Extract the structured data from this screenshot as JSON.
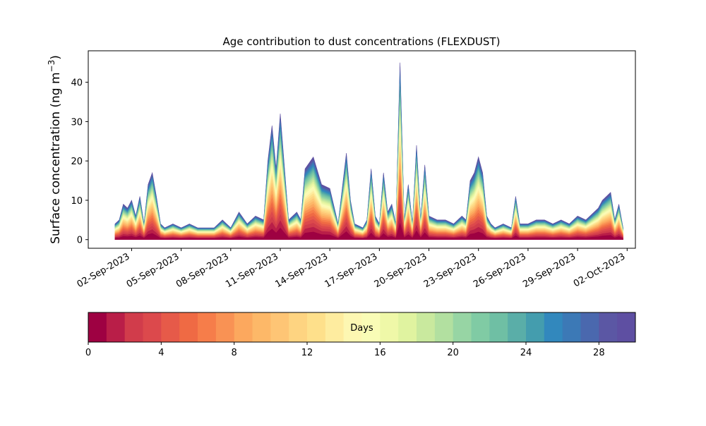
{
  "chart_data": {
    "type": "area",
    "stacked": true,
    "title": "Age contribution to dust concentrations (FLEXDUST)",
    "ylabel_main": "Surface concentration (ng m",
    "ylabel_sup": "−3",
    "ylabel_close": ")",
    "xlabel": "",
    "ylim": [
      -2.2,
      48
    ],
    "yticks": [
      0,
      10,
      20,
      30,
      40
    ],
    "xlim": [
      "2023-08-30T09:00",
      "2023-10-02T12:00"
    ],
    "x_ticks": [
      "02-Sep-2023",
      "05-Sep-2023",
      "08-Sep-2023",
      "11-Sep-2023",
      "14-Sep-2023",
      "17-Sep-2023",
      "20-Sep-2023",
      "23-Sep-2023",
      "26-Sep-2023",
      "29-Sep-2023",
      "02-Oct-2023"
    ],
    "grid": false,
    "total": {
      "x": [
        "2023-09-01T00:00",
        "2023-09-01T06:00",
        "2023-09-01T12:00",
        "2023-09-01T18:00",
        "2023-09-02T00:00",
        "2023-09-02T06:00",
        "2023-09-02T12:00",
        "2023-09-02T18:00",
        "2023-09-03T00:00",
        "2023-09-03T06:00",
        "2023-09-03T12:00",
        "2023-09-03T18:00",
        "2023-09-04T00:00",
        "2023-09-04T12:00",
        "2023-09-05T00:00",
        "2023-09-05T12:00",
        "2023-09-06T00:00",
        "2023-09-06T12:00",
        "2023-09-07T00:00",
        "2023-09-07T12:00",
        "2023-09-08T00:00",
        "2023-09-08T12:00",
        "2023-09-09T00:00",
        "2023-09-09T12:00",
        "2023-09-10T00:00",
        "2023-09-10T06:00",
        "2023-09-10T12:00",
        "2023-09-10T18:00",
        "2023-09-11T00:00",
        "2023-09-11T12:00",
        "2023-09-12T00:00",
        "2023-09-12T06:00",
        "2023-09-12T12:00",
        "2023-09-13T00:00",
        "2023-09-13T12:00",
        "2023-09-14T00:00",
        "2023-09-14T12:00",
        "2023-09-15T00:00",
        "2023-09-15T06:00",
        "2023-09-15T12:00",
        "2023-09-16T00:00",
        "2023-09-16T06:00",
        "2023-09-16T12:00",
        "2023-09-16T18:00",
        "2023-09-17T00:00",
        "2023-09-17T06:00",
        "2023-09-17T12:00",
        "2023-09-17T18:00",
        "2023-09-18T00:00",
        "2023-09-18T06:00",
        "2023-09-18T12:00",
        "2023-09-18T18:00",
        "2023-09-19T00:00",
        "2023-09-19T06:00",
        "2023-09-19T12:00",
        "2023-09-19T18:00",
        "2023-09-20T00:00",
        "2023-09-20T12:00",
        "2023-09-21T00:00",
        "2023-09-21T12:00",
        "2023-09-22T00:00",
        "2023-09-22T06:00",
        "2023-09-22T12:00",
        "2023-09-22T18:00",
        "2023-09-23T00:00",
        "2023-09-23T06:00",
        "2023-09-23T12:00",
        "2023-09-23T18:00",
        "2023-09-24T00:00",
        "2023-09-24T12:00",
        "2023-09-25T00:00",
        "2023-09-25T06:00",
        "2023-09-25T12:00",
        "2023-09-26T00:00",
        "2023-09-26T12:00",
        "2023-09-27T00:00",
        "2023-09-27T12:00",
        "2023-09-28T00:00",
        "2023-09-28T12:00",
        "2023-09-29T00:00",
        "2023-09-29T12:00",
        "2023-09-30T00:00",
        "2023-09-30T06:00",
        "2023-09-30T12:00",
        "2023-10-01T00:00",
        "2023-10-01T06:00",
        "2023-10-01T12:00",
        "2023-10-01T18:00"
      ],
      "y": [
        4,
        5,
        9,
        8,
        10,
        6,
        11,
        4,
        14,
        17,
        11,
        4,
        3,
        4,
        3,
        4,
        3,
        3,
        3,
        5,
        3,
        7,
        4,
        6,
        5,
        20,
        29,
        18,
        32,
        5,
        7,
        5,
        18,
        21,
        14,
        13,
        4,
        22,
        10,
        4,
        3,
        5,
        18,
        6,
        4,
        17,
        7,
        9,
        4,
        45,
        5,
        14,
        4,
        24,
        5,
        19,
        6,
        5,
        5,
        4,
        6,
        5,
        15,
        17,
        21,
        17,
        6,
        4,
        3,
        4,
        3,
        11,
        4,
        4,
        5,
        5,
        4,
        5,
        4,
        6,
        5,
        7,
        8,
        10,
        12,
        5,
        9,
        3
      ]
    },
    "colorbar": {
      "label": "Days",
      "min": 0,
      "max": 30,
      "ticks": [
        0,
        4,
        8,
        12,
        16,
        20,
        24,
        28
      ],
      "colors": [
        "#9e0142",
        "#b91e48",
        "#d13c4b",
        "#dc494c",
        "#e65a49",
        "#ef6a44",
        "#f67d4a",
        "#f99254",
        "#fca85e",
        "#fdb868",
        "#fec575",
        "#fed481",
        "#fee08b",
        "#feec9f",
        "#fdf7b2",
        "#f9fcb6",
        "#eff8a8",
        "#e0f3a0",
        "#c9e99e",
        "#b2e0a0",
        "#97d5a4",
        "#80cba4",
        "#6fbfa4",
        "#5aaea8",
        "#449dae",
        "#3288bd",
        "#3c79b6",
        "#4a68ae",
        "#5b57a4",
        "#5e4fa2"
      ]
    }
  }
}
